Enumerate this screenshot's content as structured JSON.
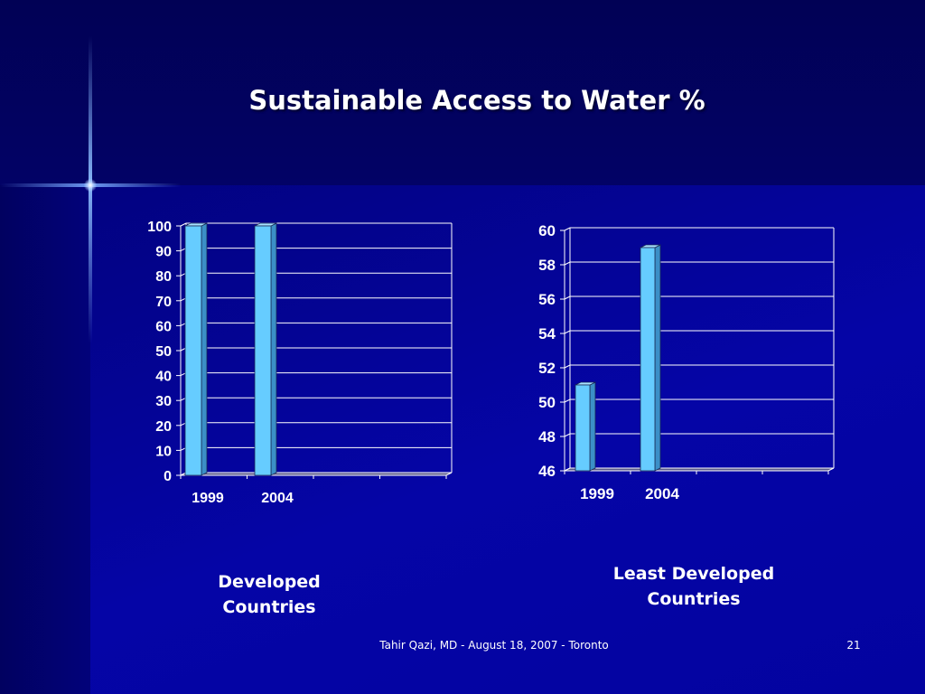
{
  "slide": {
    "title": "Sustainable Access to Water %",
    "footer": "Tahir Qazi, MD - August 18, 2007 - Toronto",
    "page_number": "21",
    "captions": [
      "Developed\nCountries",
      "Least Developed\nCountries"
    ]
  },
  "colors": {
    "bar_fill": "#66ccff",
    "gridline": "#ffffff",
    "text": "#ffffff"
  },
  "chart_data": [
    {
      "type": "bar",
      "categories": [
        "1999",
        "2004"
      ],
      "values": [
        100,
        100
      ],
      "ylim": [
        0,
        100
      ],
      "yticks": [
        "0",
        "10",
        "20",
        "30",
        "40",
        "50",
        "60",
        "70",
        "80",
        "90",
        "100"
      ],
      "grid": true
    },
    {
      "type": "bar",
      "categories": [
        "1999",
        "2004"
      ],
      "values": [
        51,
        59
      ],
      "ylim": [
        46,
        60
      ],
      "yticks": [
        "46",
        "48",
        "50",
        "52",
        "54",
        "56",
        "58",
        "60"
      ],
      "grid": true
    }
  ]
}
